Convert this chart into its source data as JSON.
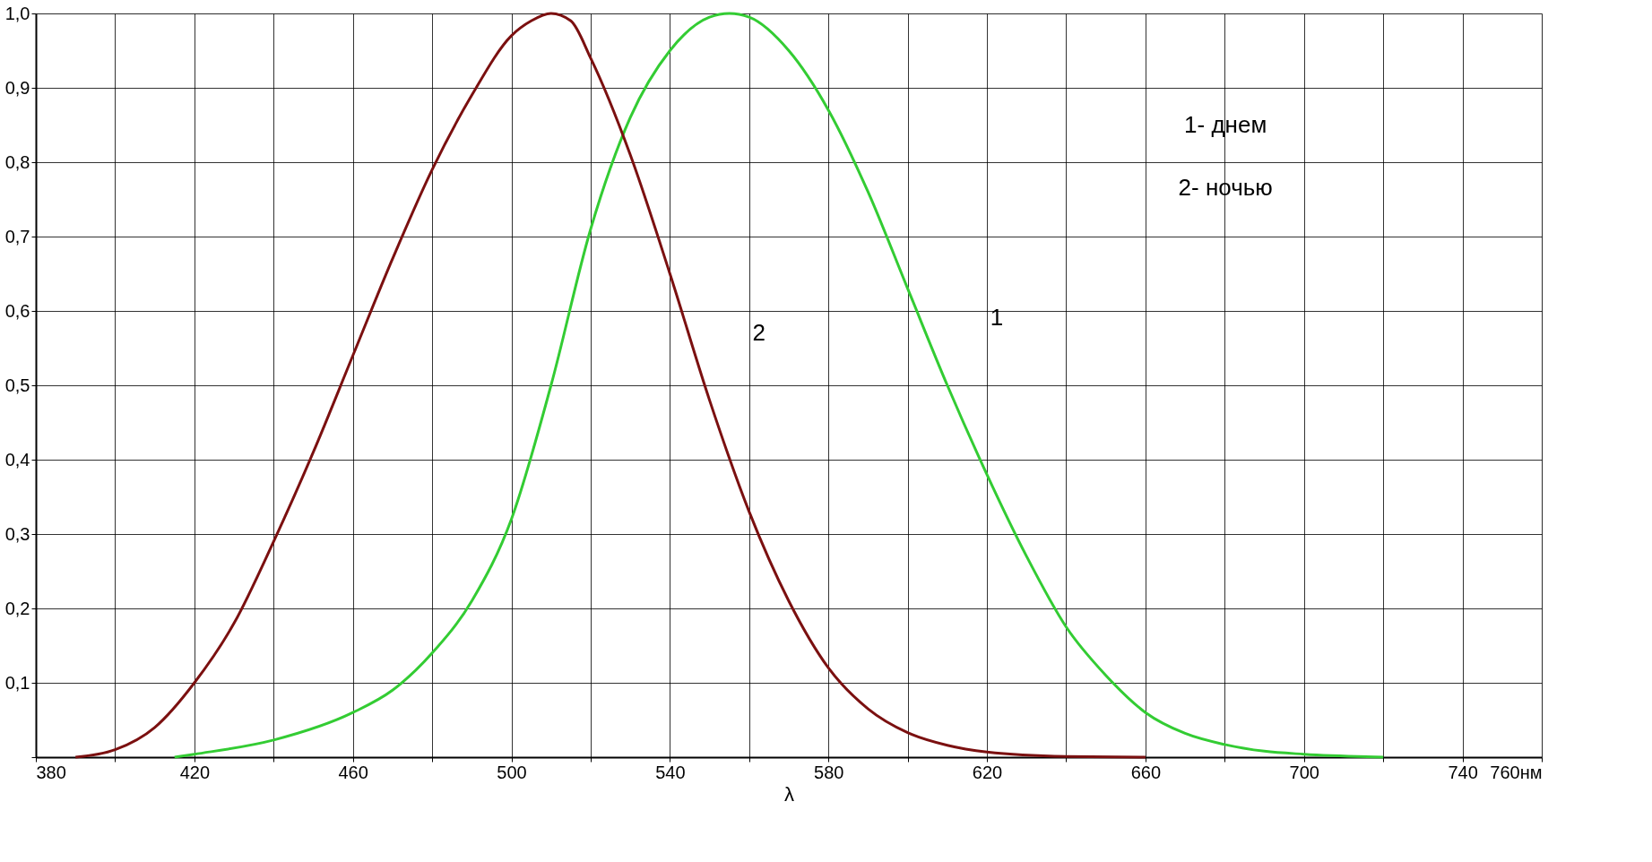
{
  "chart_data": {
    "type": "line",
    "xlabel": "λ",
    "xlim": [
      380,
      760
    ],
    "ylim": [
      0,
      1
    ],
    "xticks": [
      380,
      {
        "value": 400,
        "label": null
      },
      420,
      {
        "value": 440,
        "label": null
      },
      460,
      {
        "value": 480,
        "label": null
      },
      500,
      {
        "value": 520,
        "label": null
      },
      540,
      {
        "value": 560,
        "label": null
      },
      580,
      {
        "value": 600,
        "label": null
      },
      620,
      {
        "value": 640,
        "label": null
      },
      660,
      {
        "value": 680,
        "label": null
      },
      700,
      {
        "value": 720,
        "label": null
      },
      740,
      {
        "value": 760,
        "label": "760нм"
      }
    ],
    "yticks": [
      {
        "value": 0,
        "label": null
      },
      {
        "value": 0.1,
        "label": "0,1"
      },
      {
        "value": 0.2,
        "label": "0,2"
      },
      {
        "value": 0.3,
        "label": "0,3"
      },
      {
        "value": 0.4,
        "label": "0,4"
      },
      {
        "value": 0.5,
        "label": "0,5"
      },
      {
        "value": 0.6,
        "label": "0,6"
      },
      {
        "value": 0.7,
        "label": "0,7"
      },
      {
        "value": 0.8,
        "label": "0,8"
      },
      {
        "value": 0.9,
        "label": "0,9"
      },
      {
        "value": 1.0,
        "label": "1,0"
      }
    ],
    "grid": true,
    "marker": "none",
    "line_style": "solid",
    "series": [
      {
        "color": "#33cc33",
        "x": [
          415,
          420,
          440,
          460,
          470,
          480,
          490,
          500,
          510,
          520,
          530,
          540,
          550,
          555,
          560,
          570,
          580,
          590,
          600,
          610,
          620,
          630,
          640,
          650,
          660,
          670,
          680,
          690,
          700,
          720
        ],
        "values": [
          0,
          0.004,
          0.023,
          0.06,
          0.09,
          0.14,
          0.21,
          0.32,
          0.5,
          0.71,
          0.86,
          0.95,
          0.995,
          1.0,
          0.995,
          0.95,
          0.87,
          0.76,
          0.63,
          0.5,
          0.38,
          0.27,
          0.175,
          0.11,
          0.06,
          0.032,
          0.017,
          0.008,
          0.004,
          0
        ]
      },
      {
        "color": "#7b1010",
        "x": [
          390,
          400,
          410,
          420,
          430,
          440,
          450,
          460,
          470,
          480,
          490,
          500,
          505,
          510,
          515,
          520,
          530,
          540,
          550,
          560,
          570,
          580,
          590,
          600,
          610,
          620,
          640,
          660
        ],
        "values": [
          0,
          0.01,
          0.04,
          0.1,
          0.18,
          0.29,
          0.41,
          0.54,
          0.67,
          0.79,
          0.89,
          0.97,
          0.99,
          1.0,
          0.99,
          0.94,
          0.81,
          0.65,
          0.48,
          0.33,
          0.21,
          0.12,
          0.065,
          0.033,
          0.016,
          0.007,
          0.001,
          0
        ]
      }
    ],
    "annotations": [
      {
        "text": "1",
        "x": 610,
        "y": 0.5
      },
      {
        "text": "2",
        "x": 550,
        "y": 0.48
      },
      "1- днем",
      "2- ночью"
    ]
  }
}
